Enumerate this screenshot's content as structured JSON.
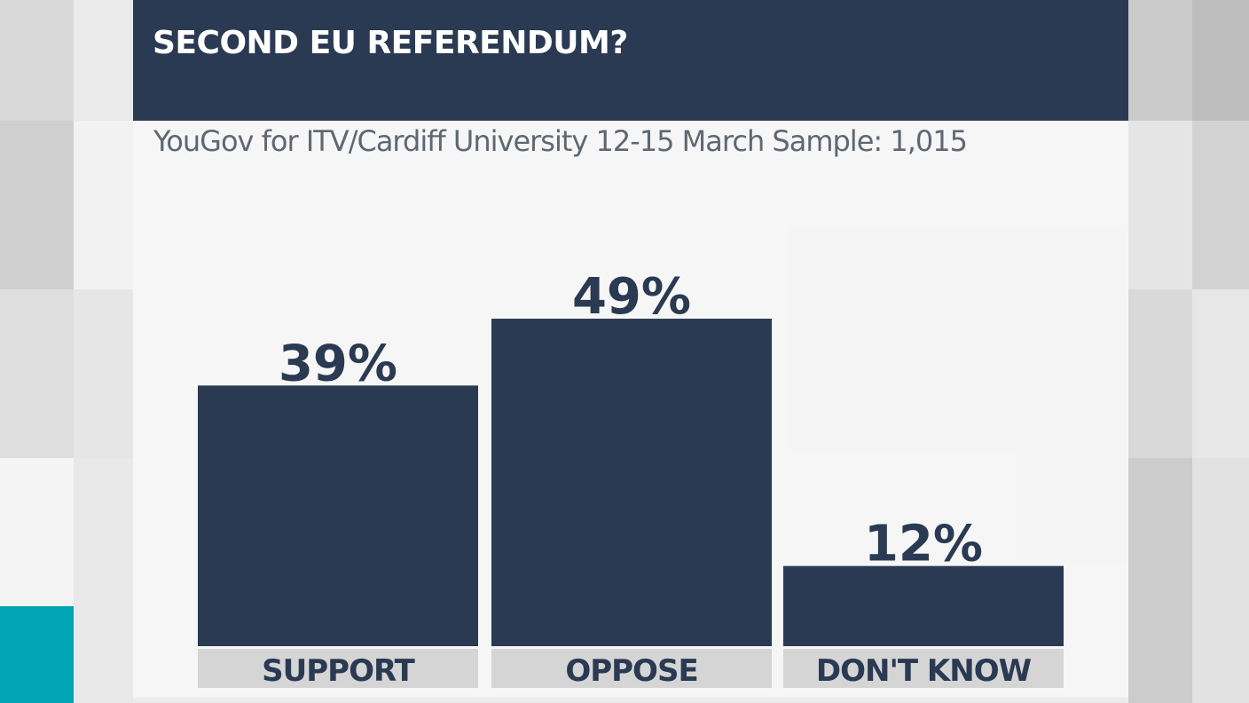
{
  "header": {
    "title": "SECOND EU REFERENDUM?",
    "subtitle": "YouGov for ITV/Cardiff University 12-15 March Sample: 1,015"
  },
  "colors": {
    "bar": "#2a3a52",
    "label_bg": "#d5d5d5",
    "accent": "#00a4b2"
  },
  "chart_data": {
    "type": "bar",
    "title": "SECOND EU REFERENDUM?",
    "subtitle": "YouGov for ITV/Cardiff University 12-15 March Sample: 1,015",
    "categories": [
      "SUPPORT",
      "OPPOSE",
      "DON'T KNOW"
    ],
    "values": [
      39,
      49,
      12
    ],
    "value_labels": [
      "39%",
      "49%",
      "12%"
    ],
    "ylim": [
      0,
      100
    ],
    "grid": false,
    "legend": "none"
  }
}
